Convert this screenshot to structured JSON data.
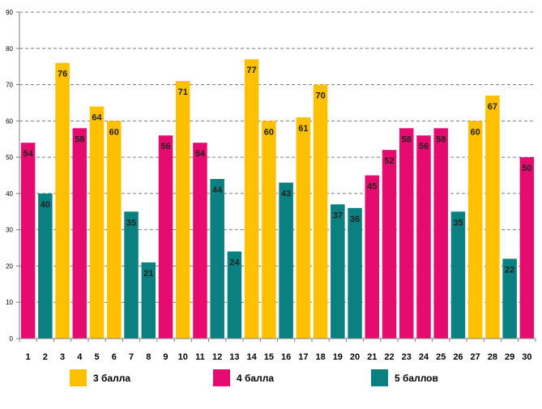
{
  "chart_data": {
    "type": "bar",
    "title": "",
    "xlabel": "",
    "ylabel": "",
    "ylim": [
      0,
      90
    ],
    "yticks": [
      "0",
      "10",
      "20",
      "30",
      "40",
      "50",
      "60",
      "70",
      "80",
      "90"
    ],
    "categories": [
      "1",
      "2",
      "3",
      "4",
      "5",
      "6",
      "7",
      "8",
      "9",
      "10",
      "11",
      "12",
      "13",
      "14",
      "15",
      "16",
      "17",
      "18",
      "19",
      "20",
      "21",
      "22",
      "23",
      "24",
      "25",
      "26",
      "27",
      "28",
      "29",
      "30"
    ],
    "values": [
      54,
      40,
      76,
      58,
      64,
      60,
      35,
      21,
      56,
      71,
      54,
      44,
      24,
      77,
      60,
      43,
      61,
      70,
      37,
      36,
      45,
      52,
      58,
      56,
      58,
      35,
      60,
      67,
      22,
      50
    ],
    "grade_group": [
      "4 балла",
      "5 баллов",
      "3 балла",
      "4 балла",
      "3 балла",
      "3 балла",
      "5 баллов",
      "5 баллов",
      "4 балла",
      "3 балла",
      "4 балла",
      "5 баллов",
      "5 баллов",
      "3 балла",
      "3 балла",
      "5 баллов",
      "3 балла",
      "3 балла",
      "5 баллов",
      "5 баллов",
      "4 балла",
      "4 балла",
      "4 балла",
      "4 балла",
      "4 балла",
      "5 баллов",
      "3 балла",
      "3 балла",
      "5 баллов",
      "4 балла"
    ],
    "grid": true,
    "legend_position": "bottom",
    "legend": [
      {
        "label": "3 балла",
        "color": "#FFC000"
      },
      {
        "label": "4 балла",
        "color": "#E60B6E"
      },
      {
        "label": "5 баллов",
        "color": "#0A8080"
      }
    ]
  }
}
